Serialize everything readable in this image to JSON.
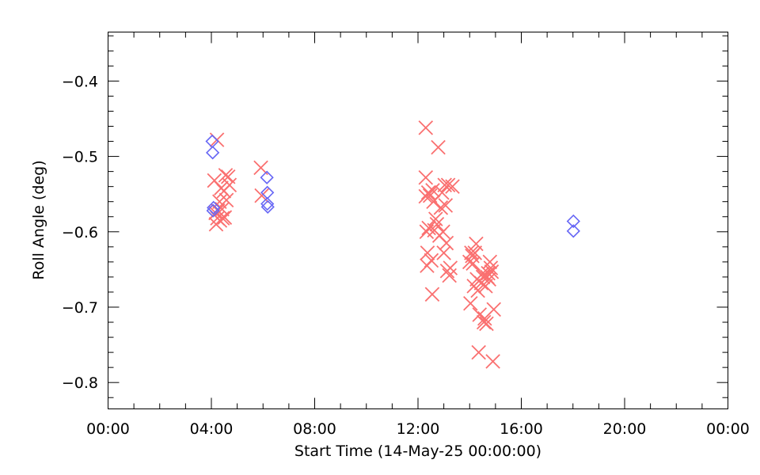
{
  "chart_data": {
    "type": "scatter",
    "xlabel": "Start Time (14-May-25 00:00:00)",
    "ylabel": "Roll Angle (deg)",
    "x_unit": "time of day (HH:MM)",
    "xlim": [
      "00:00",
      "24:00"
    ],
    "ylim": [
      -0.835,
      -0.335
    ],
    "x_ticks": [
      "00:00",
      "04:00",
      "08:00",
      "12:00",
      "16:00",
      "20:00",
      "24:00"
    ],
    "x_tick_labels": [
      "00:00",
      "04:00",
      "08:00",
      "12:00",
      "16:00",
      "20:00",
      "00:00"
    ],
    "y_ticks": [
      -0.8,
      -0.7,
      -0.6,
      -0.5,
      -0.4
    ],
    "y_tick_labels": [
      "−0.8",
      "−0.7",
      "−0.6",
      "−0.5",
      "−0.4"
    ],
    "x_minor_interval_hours": 1,
    "y_minor_interval": 0.02,
    "grid": false,
    "legend": "none",
    "series": [
      {
        "marker": "x",
        "color": "#fa7070",
        "points": [
          [
            "04:07",
            -0.532
          ],
          [
            "04:10",
            -0.575
          ],
          [
            "04:11",
            -0.59
          ],
          [
            "04:13",
            -0.478
          ],
          [
            "04:14",
            -0.582
          ],
          [
            "04:15",
            -0.572
          ],
          [
            "04:19",
            -0.56
          ],
          [
            "04:20",
            -0.585
          ],
          [
            "04:23",
            -0.542
          ],
          [
            "04:25",
            -0.57
          ],
          [
            "04:26",
            -0.582
          ],
          [
            "04:29",
            -0.546
          ],
          [
            "04:31",
            -0.581
          ],
          [
            "04:33",
            -0.525
          ],
          [
            "04:35",
            -0.558
          ],
          [
            "04:39",
            -0.527
          ],
          [
            "04:42",
            -0.538
          ],
          [
            "05:55",
            -0.515
          ],
          [
            "05:57",
            -0.552
          ],
          [
            "12:18",
            -0.462
          ],
          [
            "12:18",
            -0.528
          ],
          [
            "12:18",
            -0.553
          ],
          [
            "12:20",
            -0.6
          ],
          [
            "12:21",
            -0.645
          ],
          [
            "12:22",
            -0.628
          ],
          [
            "12:24",
            -0.548
          ],
          [
            "12:25",
            -0.595
          ],
          [
            "12:28",
            -0.552
          ],
          [
            "12:31",
            -0.638
          ],
          [
            "12:33",
            -0.683
          ],
          [
            "12:34",
            -0.545
          ],
          [
            "12:36",
            -0.56
          ],
          [
            "12:38",
            -0.598
          ],
          [
            "12:41",
            -0.583
          ],
          [
            "12:44",
            -0.59
          ],
          [
            "12:47",
            -0.488
          ],
          [
            "12:50",
            -0.605
          ],
          [
            "12:53",
            -0.568
          ],
          [
            "12:56",
            -0.548
          ],
          [
            "12:58",
            -0.6
          ],
          [
            "13:00",
            -0.628
          ],
          [
            "13:02",
            -0.538
          ],
          [
            "13:04",
            -0.565
          ],
          [
            "13:06",
            -0.615
          ],
          [
            "13:08",
            -0.652
          ],
          [
            "13:10",
            -0.538
          ],
          [
            "13:13",
            -0.658
          ],
          [
            "13:15",
            -0.648
          ],
          [
            "13:20",
            -0.54
          ],
          [
            "14:00",
            -0.64
          ],
          [
            "14:02",
            -0.695
          ],
          [
            "14:04",
            -0.628
          ],
          [
            "14:06",
            -0.632
          ],
          [
            "14:08",
            -0.642
          ],
          [
            "14:10",
            -0.672
          ],
          [
            "14:12",
            -0.628
          ],
          [
            "14:15",
            -0.616
          ],
          [
            "14:17",
            -0.663
          ],
          [
            "14:19",
            -0.678
          ],
          [
            "14:21",
            -0.76
          ],
          [
            "14:23",
            -0.71
          ],
          [
            "14:27",
            -0.668
          ],
          [
            "14:29",
            -0.656
          ],
          [
            "14:31",
            -0.66
          ],
          [
            "14:33",
            -0.72
          ],
          [
            "14:35",
            -0.715
          ],
          [
            "14:37",
            -0.672
          ],
          [
            "14:39",
            -0.722
          ],
          [
            "14:41",
            -0.66
          ],
          [
            "14:43",
            -0.655
          ],
          [
            "14:45",
            -0.663
          ],
          [
            "14:47",
            -0.64
          ],
          [
            "14:49",
            -0.648
          ],
          [
            "14:51",
            -0.653
          ],
          [
            "14:54",
            -0.772
          ],
          [
            "14:56",
            -0.703
          ]
        ]
      },
      {
        "marker": "diamond",
        "color": "#6666f5",
        "points": [
          [
            "04:02",
            -0.48
          ],
          [
            "04:03",
            -0.495
          ],
          [
            "04:04",
            -0.572
          ],
          [
            "04:05",
            -0.568
          ],
          [
            "06:09",
            -0.528
          ],
          [
            "06:10",
            -0.548
          ],
          [
            "06:10",
            -0.563
          ],
          [
            "06:11",
            -0.567
          ],
          [
            "18:01",
            -0.586
          ],
          [
            "18:01",
            -0.599
          ]
        ]
      }
    ]
  }
}
